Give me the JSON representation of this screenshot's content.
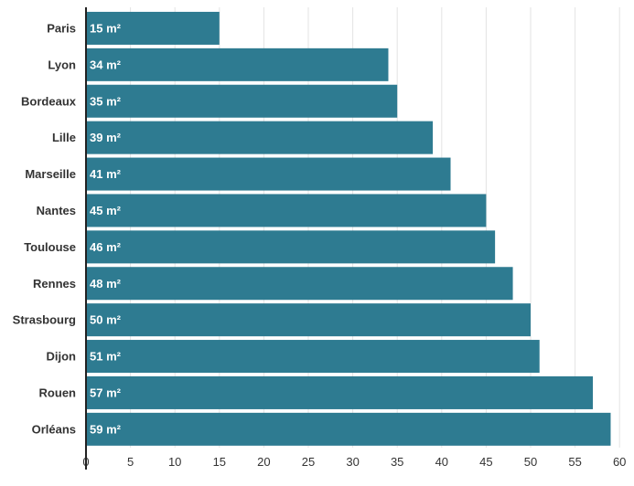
{
  "chart_data": {
    "type": "bar",
    "orientation": "horizontal",
    "categories": [
      "Paris",
      "Lyon",
      "Bordeaux",
      "Lille",
      "Marseille",
      "Nantes",
      "Toulouse",
      "Rennes",
      "Strasbourg",
      "Dijon",
      "Rouen",
      "Orléans"
    ],
    "values": [
      15,
      34,
      35,
      39,
      41,
      45,
      46,
      48,
      50,
      51,
      57,
      59
    ],
    "bar_draw_lengths": [
      15,
      34,
      35,
      39,
      41,
      45,
      46,
      48,
      50,
      51,
      57,
      59
    ],
    "data_labels": [
      "15 m²",
      "34 m²",
      "35 m²",
      "39 m²",
      "41 m²",
      "45 m²",
      "46 m²",
      "48 m²",
      "50 m²",
      "51 m²",
      "57 m²",
      "59 m²"
    ],
    "xlim": [
      0,
      60
    ],
    "xticks": [
      0,
      5,
      10,
      15,
      20,
      25,
      30,
      35,
      40,
      45,
      50,
      55,
      60
    ],
    "title": "",
    "xlabel": "",
    "ylabel": "",
    "grid": "vertical",
    "bar_color": "#2e7b91",
    "grid_color": "#e3e3e3",
    "axis_color": "#222222"
  }
}
